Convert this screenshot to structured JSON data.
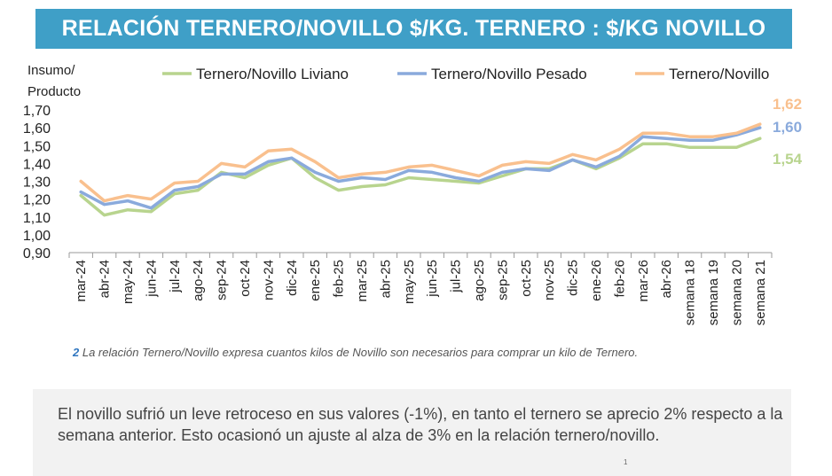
{
  "header": {
    "title": "RELACIÓN TERNERO/NOVILLO $/KG. TERNERO : $/KG NOVILLO"
  },
  "chart_data": {
    "type": "line",
    "ylabel_line1": "Insumo/",
    "ylabel_line2": "Producto",
    "ylim": [
      0.9,
      1.7
    ],
    "yticks": [
      "0,90",
      "1,00",
      "1,10",
      "1,20",
      "1,30",
      "1,40",
      "1,50",
      "1,60",
      "1,70"
    ],
    "grid": false,
    "legend_position": "top",
    "categories": [
      "mar-24",
      "abr-24",
      "may-24",
      "jun-24",
      "jul-24",
      "ago-24",
      "sep-24",
      "oct-24",
      "nov-24",
      "dic-24",
      "ene-25",
      "feb-25",
      "mar-25",
      "abr-25",
      "may-25",
      "jun-25",
      "jul-25",
      "ago-25",
      "sep-25",
      "oct-25",
      "nov-25",
      "dic-25",
      "ene-26",
      "feb-26",
      "mar-26",
      "abr-26",
      "semana 18",
      "semana 19",
      "semana 20",
      "semana 21"
    ],
    "series": [
      {
        "name": "Ternero/Novillo Liviano",
        "color": "#b8d48e",
        "values": [
          1.22,
          1.11,
          1.14,
          1.13,
          1.23,
          1.25,
          1.35,
          1.32,
          1.39,
          1.43,
          1.32,
          1.25,
          1.27,
          1.28,
          1.32,
          1.31,
          1.3,
          1.29,
          1.33,
          1.37,
          1.37,
          1.42,
          1.37,
          1.43,
          1.51,
          1.51,
          1.49,
          1.49,
          1.49,
          1.54
        ],
        "end_label": "1,54"
      },
      {
        "name": "Ternero/Novillo Pesado",
        "color": "#8aaadc",
        "values": [
          1.24,
          1.17,
          1.19,
          1.15,
          1.25,
          1.27,
          1.34,
          1.34,
          1.41,
          1.43,
          1.35,
          1.3,
          1.32,
          1.31,
          1.36,
          1.35,
          1.32,
          1.3,
          1.35,
          1.37,
          1.36,
          1.42,
          1.38,
          1.44,
          1.55,
          1.54,
          1.53,
          1.53,
          1.56,
          1.6
        ],
        "end_label": "1,60"
      },
      {
        "name": "Ternero/Novillo",
        "color": "#f9c08e",
        "values": [
          1.3,
          1.19,
          1.22,
          1.2,
          1.29,
          1.3,
          1.4,
          1.38,
          1.47,
          1.48,
          1.41,
          1.32,
          1.34,
          1.35,
          1.38,
          1.39,
          1.36,
          1.33,
          1.39,
          1.41,
          1.4,
          1.45,
          1.42,
          1.48,
          1.57,
          1.57,
          1.55,
          1.55,
          1.57,
          1.62
        ],
        "end_label": "1,62"
      }
    ]
  },
  "footnote": {
    "number": "2",
    "text": "La relación Ternero/Novillo expresa cuantos kilos de Novillo son necesarios para comprar un kilo de Ternero."
  },
  "comment": {
    "text": "El novillo sufrió un leve retroceso en sus valores (-1%), en tanto el ternero se aprecio 2% respecto a la semana anterior. Esto ocasionó un ajuste al alza de 3% en la relación ternero/novillo.",
    "page_number": "1"
  }
}
